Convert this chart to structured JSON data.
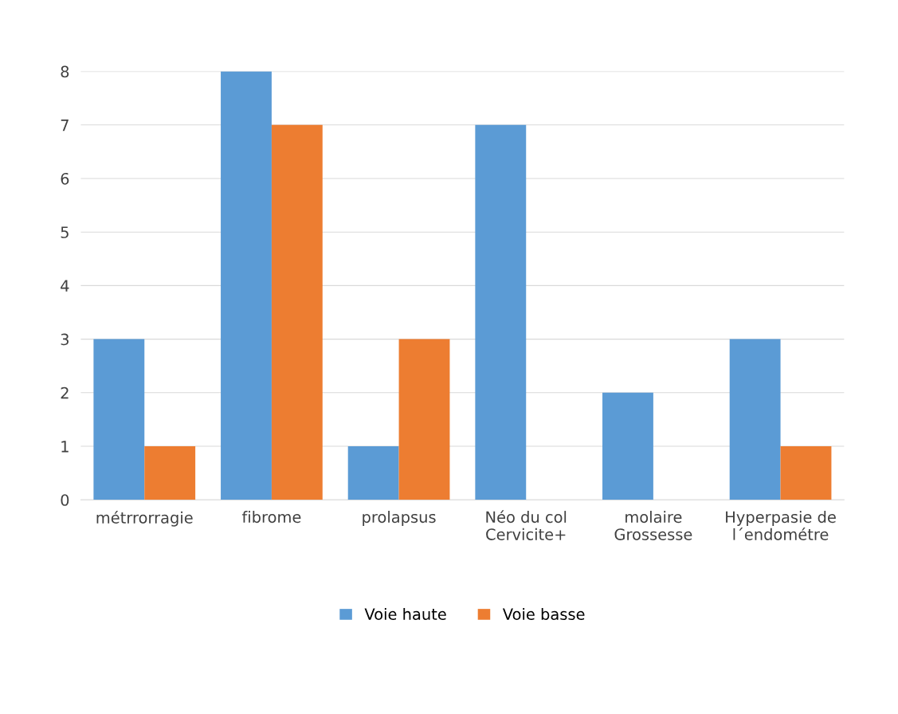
{
  "chart_data": {
    "type": "bar",
    "categories": [
      "métrrorragie",
      "fibrome",
      "prolapsus",
      "Néo du col\nCervicite+",
      "molaire\nGrossesse",
      "Hyperpasie de\nl´endométre"
    ],
    "series": [
      {
        "name": "Voie haute",
        "color": "#5b9bd5",
        "values": [
          3,
          8,
          1,
          7,
          2,
          3
        ]
      },
      {
        "name": "Voie basse",
        "color": "#ed7d31",
        "values": [
          1,
          7,
          3,
          0,
          0,
          1
        ]
      }
    ],
    "ylim": [
      0,
      8
    ],
    "yticks": [
      0,
      1,
      2,
      3,
      4,
      5,
      6,
      7,
      8
    ],
    "grid": "y",
    "legend": "bottom"
  }
}
